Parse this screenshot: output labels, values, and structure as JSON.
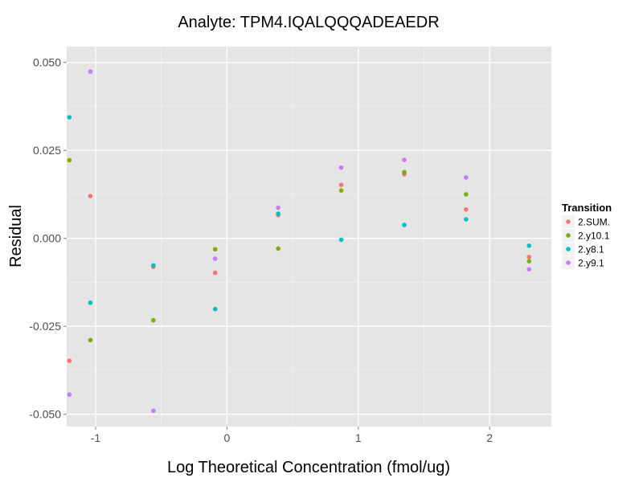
{
  "chart_data": {
    "type": "scatter",
    "title": "Analyte: TPM4.IQALQQQADEAEDR",
    "xlabel": "Log Theoretical Concentration (fmol/ug)",
    "ylabel": "Residual",
    "xlim": [
      -1.22,
      2.47
    ],
    "ylim": [
      -0.0535,
      0.0545
    ],
    "x_ticks": [
      -1,
      0,
      1,
      2
    ],
    "x_tick_labels": [
      "-1",
      "0",
      "1",
      "2"
    ],
    "y_ticks": [
      -0.05,
      -0.025,
      0.0,
      0.025,
      0.05
    ],
    "y_tick_labels": [
      "-0.050",
      "-0.025",
      "0.000",
      "0.025",
      "0.050"
    ],
    "grid": true,
    "legend": {
      "title": "Transition",
      "placement": "right"
    },
    "series": [
      {
        "name": "2.SUM.",
        "color": "#F8766D",
        "points": [
          {
            "x": -1.2,
            "y": -0.0348
          },
          {
            "x": -1.04,
            "y": 0.012
          },
          {
            "x": -0.56,
            "y": -0.0081
          },
          {
            "x": -0.09,
            "y": -0.0098
          },
          {
            "x": 0.39,
            "y": 0.0066
          },
          {
            "x": 0.87,
            "y": 0.0152
          },
          {
            "x": 1.35,
            "y": 0.0182
          },
          {
            "x": 1.82,
            "y": 0.0082
          },
          {
            "x": 2.3,
            "y": -0.0053
          }
        ]
      },
      {
        "name": "2.y10.1",
        "color": "#7CAE00",
        "points": [
          {
            "x": -1.2,
            "y": 0.0222
          },
          {
            "x": -1.04,
            "y": -0.0289
          },
          {
            "x": -0.56,
            "y": -0.0233
          },
          {
            "x": -0.09,
            "y": -0.0031
          },
          {
            "x": 0.39,
            "y": -0.0029
          },
          {
            "x": 0.87,
            "y": 0.0136
          },
          {
            "x": 1.35,
            "y": 0.0188
          },
          {
            "x": 1.82,
            "y": 0.0125
          },
          {
            "x": 2.3,
            "y": -0.0065
          }
        ]
      },
      {
        "name": "2.y8.1",
        "color": "#00BFC4",
        "points": [
          {
            "x": -1.2,
            "y": 0.0344
          },
          {
            "x": -1.04,
            "y": -0.0183
          },
          {
            "x": -0.56,
            "y": -0.0077
          },
          {
            "x": -0.09,
            "y": -0.0201
          },
          {
            "x": 0.39,
            "y": 0.007
          },
          {
            "x": 0.87,
            "y": -0.0004
          },
          {
            "x": 1.35,
            "y": 0.0038
          },
          {
            "x": 1.82,
            "y": 0.0054
          },
          {
            "x": 2.3,
            "y": -0.0021
          }
        ]
      },
      {
        "name": "2.y9.1",
        "color": "#C77CFF",
        "points": [
          {
            "x": -1.2,
            "y": -0.0444
          },
          {
            "x": -1.04,
            "y": 0.0474
          },
          {
            "x": -0.56,
            "y": -0.049
          },
          {
            "x": -0.09,
            "y": -0.0058
          },
          {
            "x": 0.39,
            "y": 0.0087
          },
          {
            "x": 0.87,
            "y": 0.0201
          },
          {
            "x": 1.35,
            "y": 0.0223
          },
          {
            "x": 1.82,
            "y": 0.0173
          },
          {
            "x": 2.3,
            "y": -0.0088
          }
        ]
      }
    ]
  }
}
